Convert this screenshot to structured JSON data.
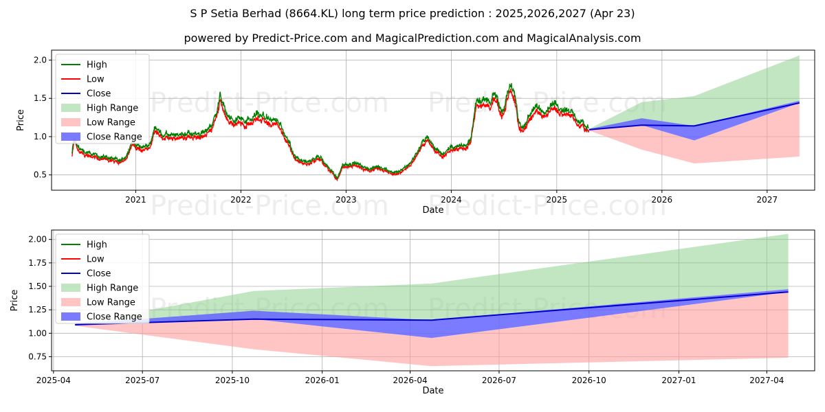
{
  "header": {
    "title": "S P Setia Berhad (8664.KL) long term price prediction : 2025,2026,2027 (Apr 23)",
    "subtitle": "powered by Predict-Price.com and MagicalPrediction.com and MagicalAnalysis.com"
  },
  "watermark": "Predict-Price.com",
  "colors": {
    "high": "#008000",
    "low": "#ff0000",
    "close": "#0000cd",
    "high_range": "#8fcf8f",
    "low_range": "#ff9c9c",
    "close_range": "#6464ff"
  },
  "chart_data": [
    {
      "type": "line",
      "xlabel": "Date",
      "ylabel": "Price",
      "xlim": [
        "2020-03-15",
        "2027-06-15"
      ],
      "ylim": [
        0.3,
        2.13
      ],
      "xticks": [
        "2021",
        "2022",
        "2023",
        "2024",
        "2025",
        "2026",
        "2027"
      ],
      "xtick_dates": [
        "2021-01-01",
        "2022-01-01",
        "2023-01-01",
        "2024-01-01",
        "2025-01-01",
        "2026-01-01",
        "2027-01-01"
      ],
      "yticks": [
        0.5,
        1.0,
        1.5,
        2.0
      ],
      "legend": [
        "High",
        "Low",
        "Close",
        "High Range",
        "Low Range",
        "Close Range"
      ],
      "legend_position": "upper-left",
      "grid": true,
      "history_anchors": [
        [
          "2020-05-25",
          0.76
        ],
        [
          "2020-06-01",
          0.97
        ],
        [
          "2020-06-15",
          0.84
        ],
        [
          "2020-07-15",
          0.78
        ],
        [
          "2020-08-20",
          0.73
        ],
        [
          "2020-10-10",
          0.7
        ],
        [
          "2020-11-10",
          0.66
        ],
        [
          "2020-12-01",
          0.75
        ],
        [
          "2020-12-20",
          0.92
        ],
        [
          "2021-01-20",
          0.84
        ],
        [
          "2021-02-20",
          0.88
        ],
        [
          "2021-03-10",
          1.1
        ],
        [
          "2021-04-01",
          1.0
        ],
        [
          "2021-05-15",
          0.98
        ],
        [
          "2021-06-20",
          1.02
        ],
        [
          "2021-08-10",
          1.0
        ],
        [
          "2021-09-20",
          1.12
        ],
        [
          "2021-10-10",
          1.28
        ],
        [
          "2021-10-20",
          1.52
        ],
        [
          "2021-11-10",
          1.3
        ],
        [
          "2021-12-10",
          1.15
        ],
        [
          "2022-01-01",
          1.22
        ],
        [
          "2022-02-01",
          1.16
        ],
        [
          "2022-03-01",
          1.27
        ],
        [
          "2022-04-10",
          1.18
        ],
        [
          "2022-05-10",
          1.2
        ],
        [
          "2022-06-01",
          1.02
        ],
        [
          "2022-07-10",
          0.72
        ],
        [
          "2022-08-15",
          0.66
        ],
        [
          "2022-10-01",
          0.72
        ],
        [
          "2022-11-15",
          0.52
        ],
        [
          "2022-12-01",
          0.45
        ],
        [
          "2022-12-20",
          0.62
        ],
        [
          "2023-02-01",
          0.64
        ],
        [
          "2023-03-20",
          0.57
        ],
        [
          "2023-05-10",
          0.58
        ],
        [
          "2023-06-20",
          0.51
        ],
        [
          "2023-07-20",
          0.57
        ],
        [
          "2023-08-15",
          0.66
        ],
        [
          "2023-09-20",
          0.88
        ],
        [
          "2023-10-10",
          0.97
        ],
        [
          "2023-11-01",
          0.84
        ],
        [
          "2023-12-01",
          0.76
        ],
        [
          "2024-01-01",
          0.84
        ],
        [
          "2024-01-20",
          0.85
        ],
        [
          "2024-02-20",
          0.87
        ],
        [
          "2024-03-10",
          1.0
        ],
        [
          "2024-03-25",
          1.4
        ],
        [
          "2024-04-20",
          1.45
        ],
        [
          "2024-05-15",
          1.4
        ],
        [
          "2024-06-01",
          1.5
        ],
        [
          "2024-06-25",
          1.3
        ],
        [
          "2024-07-25",
          1.65
        ],
        [
          "2024-08-05",
          1.6
        ],
        [
          "2024-08-20",
          1.2
        ],
        [
          "2024-09-05",
          1.1
        ],
        [
          "2024-09-25",
          1.22
        ],
        [
          "2024-10-20",
          1.35
        ],
        [
          "2024-11-20",
          1.33
        ],
        [
          "2024-12-20",
          1.4
        ],
        [
          "2025-01-20",
          1.35
        ],
        [
          "2025-02-15",
          1.3
        ],
        [
          "2025-03-10",
          1.2
        ],
        [
          "2025-04-05",
          1.12
        ],
        [
          "2025-04-22",
          1.09
        ]
      ],
      "forecast": {
        "dates": [
          "2025-04-23",
          "2025-10-23",
          "2026-04-23",
          "2027-04-23"
        ],
        "close": [
          1.09,
          1.15,
          1.14,
          1.44
        ],
        "close_range_upper": [
          1.1,
          1.24,
          1.14,
          1.47
        ],
        "close_range_lower": [
          1.09,
          1.15,
          0.95,
          1.44
        ],
        "high_range_upper": [
          1.1,
          1.45,
          1.53,
          2.06
        ],
        "high_range_lower": [
          1.1,
          1.15,
          1.14,
          1.47
        ],
        "low_range_upper": [
          1.09,
          1.15,
          0.95,
          1.44
        ],
        "low_range_lower": [
          1.08,
          0.83,
          0.65,
          0.74
        ]
      }
    },
    {
      "type": "area",
      "xlabel": "Date",
      "ylabel": "Price",
      "xlim": [
        "2025-03-30",
        "2027-05-20"
      ],
      "ylim": [
        0.6,
        2.1
      ],
      "xticks": [
        "2025-04",
        "2025-07",
        "2025-10",
        "2026-01",
        "2026-04",
        "2026-07",
        "2026-10",
        "2027-01",
        "2027-04"
      ],
      "xtick_dates": [
        "2025-04-01",
        "2025-07-01",
        "2025-10-01",
        "2026-01-01",
        "2026-04-01",
        "2026-07-01",
        "2026-10-01",
        "2027-01-01",
        "2027-04-01"
      ],
      "yticks": [
        "0.75",
        "1.00",
        "1.25",
        "1.50",
        "1.75",
        "2.00"
      ],
      "ytick_values": [
        0.75,
        1.0,
        1.25,
        1.5,
        1.75,
        2.0
      ],
      "legend": [
        "High",
        "Low",
        "Close",
        "High Range",
        "Low Range",
        "Close Range"
      ],
      "legend_position": "upper-left",
      "grid": true
    }
  ]
}
